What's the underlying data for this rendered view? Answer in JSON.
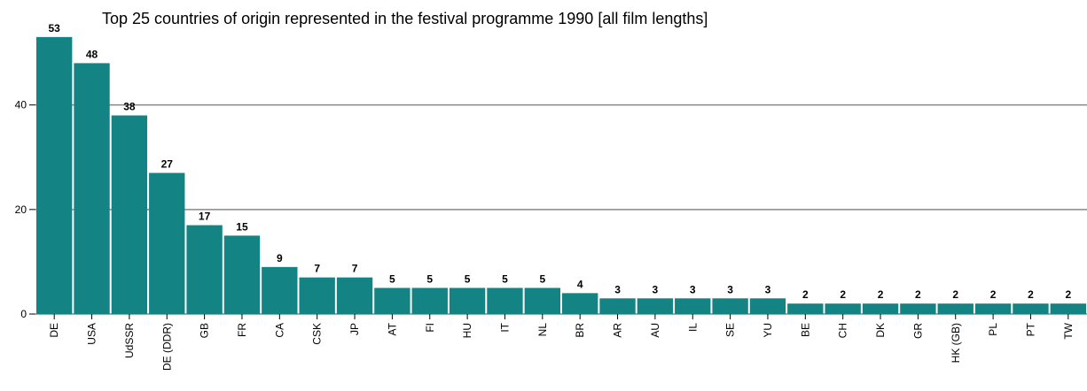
{
  "chart_data": {
    "type": "bar",
    "title": "Top 25 countries of origin represented in the festival programme 1990 [all film lengths]",
    "categories": [
      "DE",
      "USA",
      "UdSSR",
      "DE (DDR)",
      "GB",
      "FR",
      "CA",
      "CSK",
      "JP",
      "AT",
      "FI",
      "HU",
      "IT",
      "NL",
      "BR",
      "AR",
      "AU",
      "IL",
      "SE",
      "YU",
      "BE",
      "CH",
      "DK",
      "GR",
      "HK (GB)",
      "PL",
      "PT",
      "TW"
    ],
    "values": [
      53,
      48,
      38,
      27,
      17,
      15,
      9,
      7,
      7,
      5,
      5,
      5,
      5,
      5,
      4,
      3,
      3,
      3,
      3,
      3,
      2,
      2,
      2,
      2,
      2,
      2,
      2,
      2
    ],
    "color": "#138483",
    "ylim": [
      0,
      60
    ],
    "yticks": [
      0,
      20,
      40
    ],
    "grid": true
  }
}
